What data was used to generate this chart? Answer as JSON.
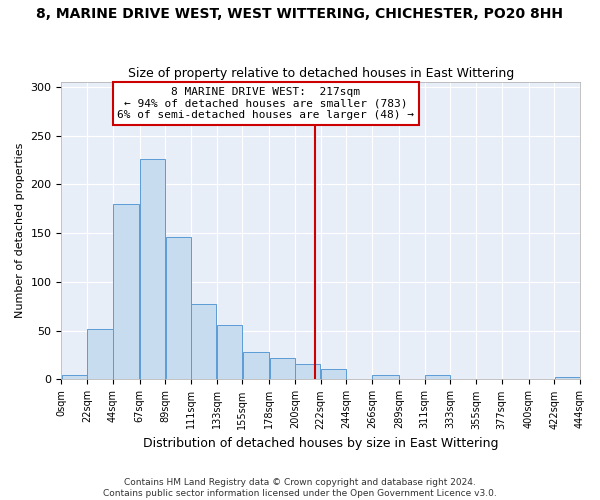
{
  "title": "8, MARINE DRIVE WEST, WEST WITTERING, CHICHESTER, PO20 8HH",
  "subtitle": "Size of property relative to detached houses in East Wittering",
  "xlabel": "Distribution of detached houses by size in East Wittering",
  "ylabel": "Number of detached properties",
  "footer_line1": "Contains HM Land Registry data © Crown copyright and database right 2024.",
  "footer_line2": "Contains public sector information licensed under the Open Government Licence v3.0.",
  "bin_edges": [
    0,
    22,
    44,
    67,
    89,
    111,
    133,
    155,
    178,
    200,
    222,
    244,
    266,
    289,
    311,
    333,
    355,
    377,
    400,
    422,
    444
  ],
  "bar_heights": [
    5,
    52,
    180,
    226,
    146,
    77,
    56,
    28,
    22,
    16,
    11,
    0,
    5,
    0,
    5,
    0,
    0,
    0,
    0,
    3
  ],
  "bar_color": "#c8dcf0",
  "bar_edge_color": "#5b9bd5",
  "property_value": 217,
  "vline_color": "#cc0000",
  "box_text_line1": "8 MARINE DRIVE WEST:  217sqm",
  "box_text_line2": "← 94% of detached houses are smaller (783)",
  "box_text_line3": "6% of semi-detached houses are larger (48) →",
  "box_edge_color": "#cc0000",
  "ylim": [
    0,
    305
  ],
  "tick_labels": [
    "0sqm",
    "22sqm",
    "44sqm",
    "67sqm",
    "89sqm",
    "111sqm",
    "133sqm",
    "155sqm",
    "178sqm",
    "200sqm",
    "222sqm",
    "244sqm",
    "266sqm",
    "289sqm",
    "311sqm",
    "333sqm",
    "355sqm",
    "377sqm",
    "400sqm",
    "422sqm",
    "444sqm"
  ],
  "plot_bg_color": "#e8eef8",
  "fig_bg_color": "#ffffff",
  "grid_color": "#ffffff",
  "title_fontsize": 10,
  "subtitle_fontsize": 9,
  "xlabel_fontsize": 9,
  "ylabel_fontsize": 8,
  "tick_fontsize": 7,
  "footer_fontsize": 6.5
}
